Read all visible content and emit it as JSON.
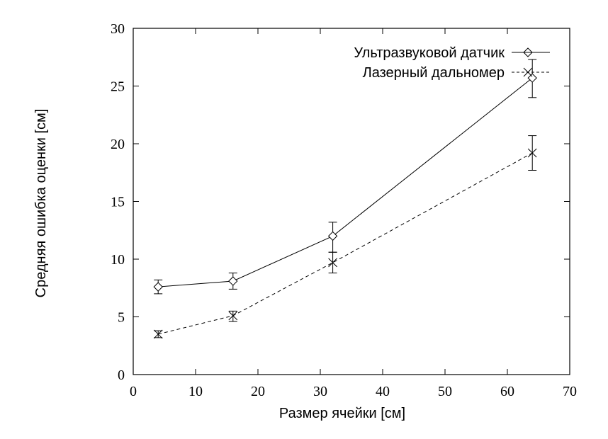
{
  "chart_data": {
    "type": "line",
    "xlabel": "Размер ячейки [см]",
    "ylabel": "Средняя ошибка оценки [см]",
    "xlim": [
      0,
      70
    ],
    "ylim": [
      0,
      30
    ],
    "xticks": [
      0,
      10,
      20,
      30,
      40,
      50,
      60,
      70
    ],
    "yticks": [
      0,
      5,
      10,
      15,
      20,
      25,
      30
    ],
    "legend_position": "top-right",
    "grid": false,
    "series": [
      {
        "name": "Ультразвуковой датчик",
        "marker": "diamond",
        "line_style": "solid",
        "x": [
          4,
          16,
          32,
          64
        ],
        "y": [
          7.6,
          8.1,
          12.0,
          25.7
        ],
        "err_low": [
          7.0,
          7.4,
          10.6,
          24.0
        ],
        "err_high": [
          8.2,
          8.8,
          13.2,
          27.3
        ]
      },
      {
        "name": "Лазерный дальномер",
        "marker": "x",
        "line_style": "dashed",
        "x": [
          4,
          16,
          32,
          64
        ],
        "y": [
          3.5,
          5.1,
          9.7,
          19.2
        ],
        "err_low": [
          3.2,
          4.6,
          8.8,
          17.7
        ],
        "err_high": [
          3.8,
          5.5,
          10.6,
          20.7
        ]
      }
    ]
  }
}
